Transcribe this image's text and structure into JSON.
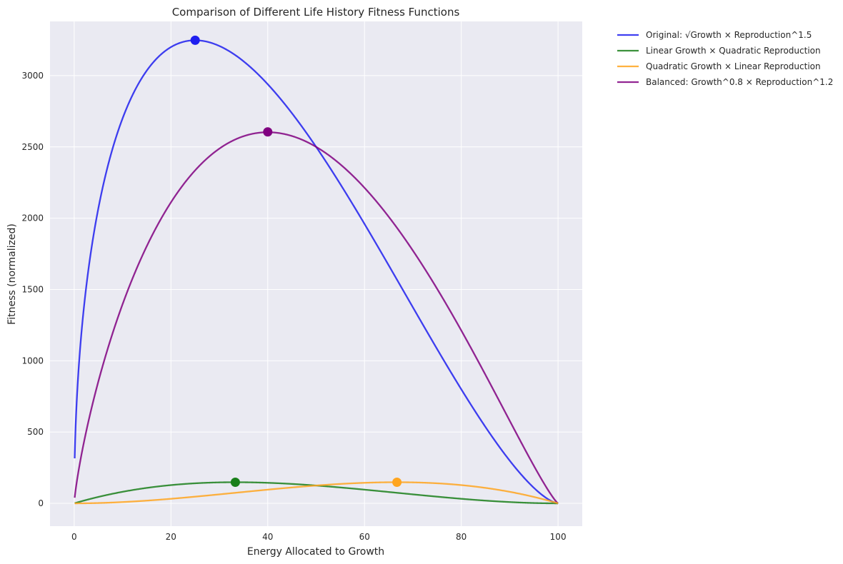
{
  "chart_data": {
    "type": "line",
    "title": "Comparison of Different Life History Fitness Functions",
    "xlabel": "Energy Allocated to Growth",
    "ylabel": "Fitness (normalized)",
    "xlim": [
      -5,
      105
    ],
    "ylim": [
      -160,
      3380
    ],
    "xticks": [
      0,
      20,
      40,
      60,
      80,
      100
    ],
    "yticks": [
      0,
      500,
      1000,
      1500,
      2000,
      2500,
      3000
    ],
    "grid": true,
    "legend_position": "outside-top-right",
    "background_color": "#eaeaf2",
    "series": [
      {
        "name": "Original: √Growth × Reproduction^1.5",
        "color": "#1f1fef",
        "function": "sqrt(x) * (100 - x)^1.5",
        "optimum": {
          "x": 25,
          "y": 3248
        }
      },
      {
        "name": "Linear Growth × Quadratic Reproduction",
        "color": "#1a7f1a",
        "function": "x * (100 - x)^2",
        "optimum": {
          "x": 33.3,
          "y": 148
        }
      },
      {
        "name": "Quadratic Growth × Linear Reproduction",
        "color": "#ffa51f",
        "function": "x^2 * (100 - x)",
        "optimum": {
          "x": 66.7,
          "y": 148
        }
      },
      {
        "name": "Balanced: Growth^0.8 × Reproduction^1.2",
        "color": "#800080",
        "function": "x^0.8 * (100 - x)^1.2",
        "optimum": {
          "x": 40,
          "y": 2605
        }
      }
    ]
  }
}
